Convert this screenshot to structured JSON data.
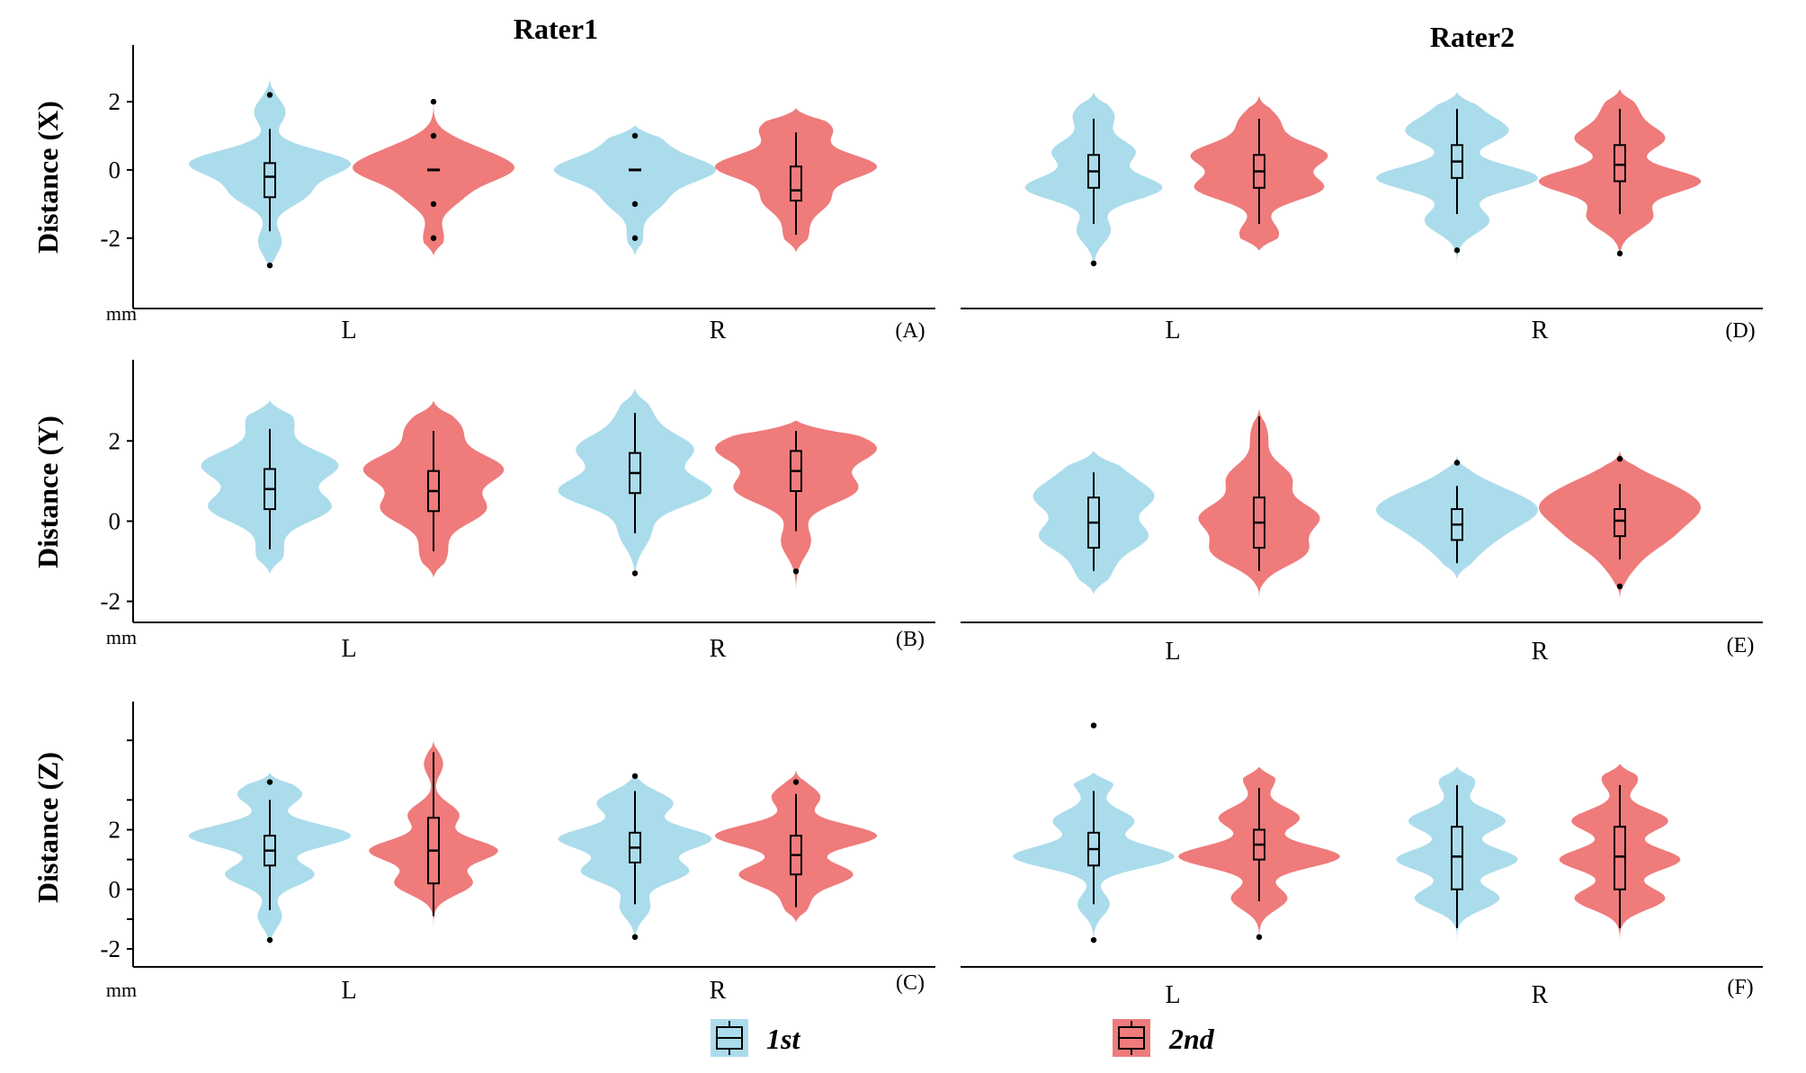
{
  "column_titles": [
    "Rater1",
    "Rater2"
  ],
  "legend": [
    {
      "label": "1st",
      "color": "#abdcec"
    },
    {
      "label": "2nd",
      "color": "#ef7b7b"
    }
  ],
  "colors": {
    "first": "#abdcec",
    "second": "#ef7b7b",
    "axis": "#000000"
  },
  "chart_data": [
    {
      "id": "A",
      "panel_label": "(A)",
      "rater": "Rater1",
      "type": "violin",
      "ylabel": "Distance (X)",
      "unit": "mm",
      "yticks": [
        -2,
        0,
        2
      ],
      "ylim": [
        -3.8,
        3.4
      ],
      "categories": [
        "L",
        "R"
      ],
      "groups": [
        {
          "category": "L",
          "series": "1st",
          "width": 1.0,
          "modes": [
            [
              0.2,
              1.0
            ],
            [
              -0.7,
              0.45
            ],
            [
              1.7,
              0.2
            ],
            [
              -2.1,
              0.15
            ]
          ],
          "range": [
            -3.0,
            2.7
          ],
          "box": [
            -0.8,
            0.2
          ],
          "median": -0.2,
          "whiskers": [
            -1.8,
            1.2
          ],
          "outliers": [
            2.2,
            -2.8
          ]
        },
        {
          "category": "L",
          "series": "2nd",
          "width": 1.0,
          "modes": [
            [
              0.0,
              1.0
            ],
            [
              0.6,
              0.45
            ],
            [
              -0.8,
              0.35
            ],
            [
              -2.0,
              0.15
            ]
          ],
          "range": [
            -2.5,
            2.1
          ],
          "box": [
            0.0,
            0.0
          ],
          "median": 0.0,
          "whiskers": [
            0.0,
            0.0
          ],
          "outliers": [
            2.0,
            1.0,
            -1.0,
            -2.0
          ]
        },
        {
          "category": "R",
          "series": "1st",
          "width": 1.0,
          "modes": [
            [
              0.0,
              1.0
            ],
            [
              0.85,
              0.3
            ],
            [
              -0.9,
              0.35
            ],
            [
              -2.0,
              0.1
            ]
          ],
          "range": [
            -2.5,
            1.3
          ],
          "box": [
            0.0,
            0.0
          ],
          "median": 0.0,
          "whiskers": [
            0.0,
            0.0
          ],
          "outliers": [
            1.0,
            -1.0,
            -2.0
          ]
        },
        {
          "category": "R",
          "series": "2nd",
          "width": 1.0,
          "modes": [
            [
              0.1,
              1.0
            ],
            [
              1.2,
              0.45
            ],
            [
              -0.9,
              0.4
            ],
            [
              -1.9,
              0.15
            ]
          ],
          "range": [
            -2.4,
            1.8
          ],
          "box": [
            -0.9,
            0.1
          ],
          "median": -0.6,
          "whiskers": [
            -1.9,
            1.1
          ],
          "outliers": []
        }
      ]
    },
    {
      "id": "B",
      "panel_label": "(B)",
      "rater": "Rater1",
      "type": "violin",
      "ylabel": "Distance (Y)",
      "unit": "mm",
      "yticks": [
        -2,
        0,
        2
      ],
      "ylim": [
        -2.3,
        3.8
      ],
      "categories": [
        "L",
        "R"
      ],
      "groups": [
        {
          "category": "L",
          "series": "1st",
          "width": 0.85,
          "modes": [
            [
              1.4,
              1.0
            ],
            [
              0.35,
              0.9
            ],
            [
              2.5,
              0.35
            ],
            [
              -0.8,
              0.2
            ]
          ],
          "range": [
            -1.3,
            3.0
          ],
          "box": [
            0.3,
            1.3
          ],
          "median": 0.8,
          "whiskers": [
            -0.7,
            2.3
          ],
          "outliers": []
        },
        {
          "category": "L",
          "series": "2nd",
          "width": 0.87,
          "modes": [
            [
              1.3,
              1.0
            ],
            [
              0.3,
              0.75
            ],
            [
              2.3,
              0.4
            ],
            [
              -0.8,
              0.2
            ]
          ],
          "range": [
            -1.4,
            3.0
          ],
          "box": [
            0.25,
            1.25
          ],
          "median": 0.75,
          "whiskers": [
            -0.75,
            2.25
          ],
          "outliers": []
        },
        {
          "category": "R",
          "series": "1st",
          "width": 0.95,
          "modes": [
            [
              0.75,
              1.0
            ],
            [
              1.8,
              0.75
            ],
            [
              2.7,
              0.2
            ],
            [
              -0.3,
              0.2
            ]
          ],
          "range": [
            -1.7,
            3.3
          ],
          "box": [
            0.7,
            1.7
          ],
          "median": 1.2,
          "whiskers": [
            -0.3,
            2.7
          ],
          "outliers": [
            -1.3
          ]
        },
        {
          "category": "R",
          "series": "2nd",
          "width": 1.0,
          "modes": [
            [
              1.8,
              1.0
            ],
            [
              0.8,
              0.8
            ],
            [
              -0.5,
              0.2
            ],
            [
              2.4,
              0.2
            ]
          ],
          "range": [
            -1.8,
            2.5
          ],
          "box": [
            0.75,
            1.75
          ],
          "median": 1.25,
          "whiskers": [
            -0.25,
            2.25
          ],
          "outliers": [
            -1.25
          ]
        }
      ]
    },
    {
      "id": "C",
      "panel_label": "(C)",
      "rater": "Rater1",
      "type": "violin",
      "ylabel": "Distance (Z)",
      "unit": "mm",
      "yticks": [
        -2,
        0,
        2
      ],
      "ylim": [
        -2.3,
        6.0
      ],
      "categories": [
        "L",
        "R"
      ],
      "groups": [
        {
          "category": "L",
          "series": "1st",
          "width": 1.0,
          "modes": [
            [
              1.8,
              1.0
            ],
            [
              0.5,
              0.55
            ],
            [
              3.2,
              0.4
            ],
            [
              -0.9,
              0.15
            ]
          ],
          "range": [
            -2.0,
            3.9
          ],
          "box": [
            0.8,
            1.8
          ],
          "median": 1.3,
          "whiskers": [
            -0.7,
            3.0
          ],
          "outliers": [
            3.6,
            -1.7
          ]
        },
        {
          "category": "L",
          "series": "2nd",
          "width": 0.8,
          "modes": [
            [
              1.3,
              1.0
            ],
            [
              0.2,
              0.6
            ],
            [
              2.5,
              0.4
            ],
            [
              4.2,
              0.15
            ]
          ],
          "range": [
            -1.6,
            5.0
          ],
          "box": [
            0.2,
            2.4
          ],
          "median": 1.3,
          "whiskers": [
            -0.9,
            4.6
          ],
          "outliers": []
        },
        {
          "category": "R",
          "series": "1st",
          "width": 0.95,
          "modes": [
            [
              1.7,
              1.0
            ],
            [
              0.6,
              0.7
            ],
            [
              2.9,
              0.5
            ],
            [
              -0.6,
              0.2
            ]
          ],
          "range": [
            -2.0,
            4.0
          ],
          "box": [
            0.9,
            1.9
          ],
          "median": 1.4,
          "whiskers": [
            -0.5,
            3.3
          ],
          "outliers": [
            3.8,
            -1.6
          ]
        },
        {
          "category": "R",
          "series": "2nd",
          "width": 1.0,
          "modes": [
            [
              1.8,
              1.0
            ],
            [
              0.5,
              0.7
            ],
            [
              3.1,
              0.3
            ],
            [
              -0.5,
              0.15
            ]
          ],
          "range": [
            -1.1,
            4.0
          ],
          "box": [
            0.5,
            1.8
          ],
          "median": 1.15,
          "whiskers": [
            -0.6,
            3.2
          ],
          "outliers": [
            3.6
          ]
        }
      ]
    },
    {
      "id": "D",
      "panel_label": "(D)",
      "rater": "Rater2",
      "type": "violin",
      "ylabel": "",
      "unit": "",
      "yticks": [],
      "ylim": [
        -3.8,
        3.4
      ],
      "categories": [
        "L",
        "R"
      ],
      "groups": [
        {
          "category": "L",
          "series": "1st",
          "width": 0.85,
          "modes": [
            [
              -0.4,
              1.0
            ],
            [
              0.7,
              0.6
            ],
            [
              1.8,
              0.3
            ],
            [
              -1.7,
              0.25
            ]
          ],
          "range": [
            -3.0,
            2.5
          ],
          "box": [
            -0.4,
            0.6
          ],
          "median": 0.1,
          "whiskers": [
            -1.5,
            1.7
          ],
          "outliers": [
            -2.7
          ]
        },
        {
          "category": "L",
          "series": "2nd",
          "width": 0.85,
          "modes": [
            [
              0.6,
              1.0
            ],
            [
              -0.4,
              0.95
            ],
            [
              1.6,
              0.3
            ],
            [
              -1.8,
              0.3
            ]
          ],
          "range": [
            -2.3,
            2.4
          ],
          "box": [
            -0.4,
            0.6
          ],
          "median": 0.1,
          "whiskers": [
            -1.5,
            1.7
          ],
          "outliers": []
        },
        {
          "category": "R",
          "series": "1st",
          "width": 1.0,
          "modes": [
            [
              -0.1,
              1.0
            ],
            [
              1.3,
              0.6
            ],
            [
              -1.4,
              0.4
            ],
            [
              2.0,
              0.2
            ]
          ],
          "range": [
            -2.8,
            2.5
          ],
          "box": [
            -0.1,
            0.9
          ],
          "median": 0.4,
          "whiskers": [
            -1.2,
            2.0
          ],
          "outliers": [
            -2.3
          ]
        },
        {
          "category": "R",
          "series": "2nd",
          "width": 1.0,
          "modes": [
            [
              -0.2,
              1.0
            ],
            [
              1.1,
              0.55
            ],
            [
              -1.3,
              0.4
            ],
            [
              2.0,
              0.2
            ]
          ],
          "range": [
            -2.8,
            2.6
          ],
          "box": [
            -0.2,
            0.9
          ],
          "median": 0.3,
          "whiskers": [
            -1.2,
            2.0
          ],
          "outliers": [
            -2.4
          ]
        }
      ]
    },
    {
      "id": "E",
      "panel_label": "(E)",
      "rater": "Rater2",
      "type": "violin",
      "ylabel": "",
      "unit": "",
      "yticks": [],
      "ylim": [
        -2.3,
        3.8
      ],
      "categories": [
        "L",
        "R"
      ],
      "groups": [
        {
          "category": "L",
          "series": "1st",
          "width": 0.75,
          "modes": [
            [
              0.7,
              1.0
            ],
            [
              -0.3,
              0.95
            ],
            [
              1.4,
              0.4
            ],
            [
              -1.2,
              0.3
            ]
          ],
          "range": [
            -1.8,
            1.9
          ],
          "box": [
            -0.6,
            0.7
          ],
          "median": 0.05,
          "whiskers": [
            -1.2,
            1.35
          ],
          "outliers": []
        },
        {
          "category": "L",
          "series": "2nd",
          "width": 0.75,
          "modes": [
            [
              0.2,
              1.0
            ],
            [
              -0.7,
              0.8
            ],
            [
              1.2,
              0.55
            ],
            [
              2.3,
              0.15
            ]
          ],
          "range": [
            -1.9,
            3.0
          ],
          "box": [
            -0.6,
            0.7
          ],
          "median": 0.05,
          "whiskers": [
            -1.2,
            2.8
          ],
          "outliers": []
        },
        {
          "category": "R",
          "series": "1st",
          "width": 1.0,
          "modes": [
            [
              0.35,
              1.0
            ],
            [
              0.9,
              0.45
            ],
            [
              -0.3,
              0.45
            ],
            [
              -0.9,
              0.15
            ]
          ],
          "range": [
            -1.4,
            1.8
          ],
          "box": [
            -0.4,
            0.4
          ],
          "median": 0.0,
          "whiskers": [
            -1.0,
            1.0
          ],
          "outliers": [
            1.6
          ]
        },
        {
          "category": "R",
          "series": "2nd",
          "width": 1.0,
          "modes": [
            [
              0.4,
              1.0
            ],
            [
              1.0,
              0.6
            ],
            [
              -0.3,
              0.65
            ],
            [
              -1.0,
              0.2
            ]
          ],
          "range": [
            -1.9,
            1.9
          ],
          "box": [
            -0.3,
            0.4
          ],
          "median": 0.1,
          "whiskers": [
            -0.9,
            1.05
          ],
          "outliers": [
            1.7,
            -1.6
          ]
        }
      ]
    },
    {
      "id": "F",
      "panel_label": "(F)",
      "rater": "Rater2",
      "type": "violin",
      "ylabel": "",
      "unit": "",
      "yticks": [],
      "ylim": [
        -2.3,
        6.0
      ],
      "categories": [
        "L",
        "R"
      ],
      "groups": [
        {
          "category": "L",
          "series": "1st",
          "width": 1.0,
          "modes": [
            [
              1.1,
              1.0
            ],
            [
              2.3,
              0.5
            ],
            [
              3.6,
              0.25
            ],
            [
              -0.5,
              0.2
            ]
          ],
          "range": [
            -2.0,
            3.9
          ],
          "box": [
            0.8,
            1.9
          ],
          "median": 1.35,
          "whiskers": [
            -0.5,
            3.3
          ],
          "outliers": [
            5.5,
            -1.7
          ]
        },
        {
          "category": "L",
          "series": "2nd",
          "width": 1.0,
          "modes": [
            [
              1.1,
              1.0
            ],
            [
              2.4,
              0.5
            ],
            [
              -0.3,
              0.35
            ],
            [
              3.7,
              0.2
            ]
          ],
          "range": [
            -1.9,
            4.1
          ],
          "box": [
            1.0,
            2.0
          ],
          "median": 1.5,
          "whiskers": [
            -0.4,
            3.4
          ],
          "outliers": [
            -1.6
          ]
        },
        {
          "category": "R",
          "series": "1st",
          "width": 0.75,
          "modes": [
            [
              1.0,
              1.0
            ],
            [
              2.3,
              0.8
            ],
            [
              -0.3,
              0.7
            ],
            [
              3.6,
              0.3
            ]
          ],
          "range": [
            -2.2,
            4.1
          ],
          "box": [
            0.0,
            2.1
          ],
          "median": 1.1,
          "whiskers": [
            -1.3,
            3.5
          ],
          "outliers": []
        },
        {
          "category": "R",
          "series": "2nd",
          "width": 0.75,
          "modes": [
            [
              1.0,
              1.0
            ],
            [
              2.3,
              0.8
            ],
            [
              -0.3,
              0.75
            ],
            [
              3.7,
              0.3
            ]
          ],
          "range": [
            -2.2,
            4.2
          ],
          "box": [
            0.0,
            2.1
          ],
          "median": 1.1,
          "whiskers": [
            -1.3,
            3.5
          ],
          "outliers": []
        }
      ]
    }
  ]
}
